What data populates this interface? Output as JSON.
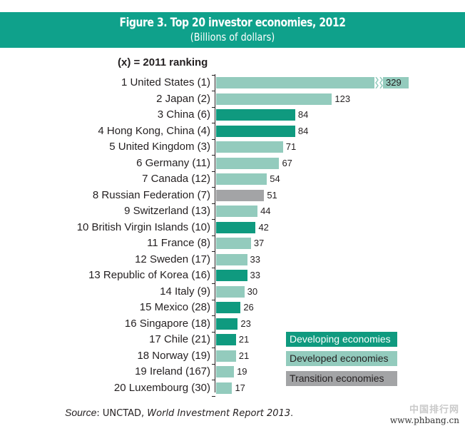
{
  "header": {
    "title": "Figure 3. Top 20 investor economies, 2012",
    "subtitle": "(Billions of dollars)"
  },
  "ranking_note": "(x) = 2011 ranking",
  "legend": {
    "developing": "Developing economies",
    "developed": "Developed economies",
    "transition": "Transition economies"
  },
  "colors": {
    "header": "#0fa18b",
    "developing": "#0f9a7f",
    "developed": "#93cbbd",
    "transition": "#a3a4a6"
  },
  "source": {
    "prefix": "Source",
    "org": ": UNCTAD, ",
    "report": "World Investment Report 2013",
    "suffix": "."
  },
  "watermark": {
    "cn": "中国排行网",
    "url": "www.phbang.cn"
  },
  "chart_data": {
    "type": "bar",
    "orientation": "horizontal",
    "title": "Figure 3. Top 20 investor economies, 2012",
    "subtitle": "(Billions of dollars)",
    "xlabel": "",
    "ylabel": "",
    "annotation": "(x) = 2011 ranking; bar for United States is broken (axis break)",
    "legend_position": "bottom-right",
    "grid": false,
    "categories": [
      "1 United States (1)",
      "2 Japan (2)",
      "3 China (6)",
      "4 Hong Kong, China (4)",
      "5 United Kingdom (3)",
      "6 Germany (11)",
      "7 Canada (12)",
      "8 Russian Federation (7)",
      "9 Switzerland (13)",
      "10 British Virgin Islands (10)",
      "11 France (8)",
      "12 Sweden (17)",
      "13 Republic of Korea (16)",
      "14 Italy (9)",
      "15 Mexico (28)",
      "16 Singapore (18)",
      "17 Chile (21)",
      "18 Norway (19)",
      "19 Ireland (167)",
      "20 Luxembourg (30)"
    ],
    "values": [
      329,
      123,
      84,
      84,
      71,
      67,
      54,
      51,
      44,
      42,
      37,
      33,
      33,
      30,
      26,
      23,
      21,
      21,
      19,
      17
    ],
    "groups": [
      "developed",
      "developed",
      "developing",
      "developing",
      "developed",
      "developed",
      "developed",
      "transition",
      "developed",
      "developing",
      "developed",
      "developed",
      "developing",
      "developed",
      "developing",
      "developing",
      "developing",
      "developed",
      "developed",
      "developed"
    ],
    "legend": [
      "Developing economies",
      "Developed economies",
      "Transition economies"
    ]
  }
}
